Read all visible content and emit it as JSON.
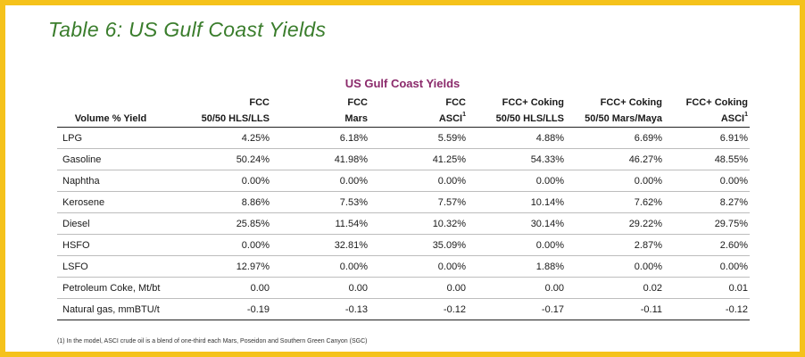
{
  "heading": "Table 6: US Gulf Coast Yields",
  "table_title": "US Gulf Coast Yields",
  "header_top": [
    "FCC",
    "FCC",
    "FCC",
    "FCC+ Coking",
    "FCC+ Coking",
    "FCC+ Coking"
  ],
  "header_bottom": {
    "label": "Volume % Yield",
    "cols": [
      {
        "text": "50/50 HLS/LLS",
        "sup": ""
      },
      {
        "text": "Mars",
        "sup": ""
      },
      {
        "text": "ASCI",
        "sup": "1"
      },
      {
        "text": "50/50 HLS/LLS",
        "sup": ""
      },
      {
        "text": "50/50 Mars/Maya",
        "sup": ""
      },
      {
        "text": "ASCI",
        "sup": "1"
      }
    ]
  },
  "rows": [
    {
      "label": "LPG",
      "values": [
        "4.25%",
        "6.18%",
        "5.59%",
        "4.88%",
        "6.69%",
        "6.91%"
      ]
    },
    {
      "label": "Gasoline",
      "values": [
        "50.24%",
        "41.98%",
        "41.25%",
        "54.33%",
        "46.27%",
        "48.55%"
      ]
    },
    {
      "label": "Naphtha",
      "values": [
        "0.00%",
        "0.00%",
        "0.00%",
        "0.00%",
        "0.00%",
        "0.00%"
      ]
    },
    {
      "label": "Kerosene",
      "values": [
        "8.86%",
        "7.53%",
        "7.57%",
        "10.14%",
        "7.62%",
        "8.27%"
      ]
    },
    {
      "label": "Diesel",
      "values": [
        "25.85%",
        "11.54%",
        "10.32%",
        "30.14%",
        "29.22%",
        "29.75%"
      ]
    },
    {
      "label": "HSFO",
      "values": [
        "0.00%",
        "32.81%",
        "35.09%",
        "0.00%",
        "2.87%",
        "2.60%"
      ]
    },
    {
      "label": "LSFO",
      "values": [
        "12.97%",
        "0.00%",
        "0.00%",
        "1.88%",
        "0.00%",
        "0.00%"
      ]
    },
    {
      "label": "Petroleum Coke, Mt/bt",
      "values": [
        "0.00",
        "0.00",
        "0.00",
        "0.00",
        "0.02",
        "0.01"
      ]
    },
    {
      "label": "Natural gas, mmBTU/t",
      "values": [
        "-0.19",
        "-0.13",
        "-0.12",
        "-0.17",
        "-0.11",
        "-0.12"
      ]
    }
  ],
  "footnote": "(1) In the model, ASCI crude oil is a blend of one-third each Mars, Poseidon and Southern Green Canyon (SGC)",
  "colors": {
    "frame": "#f5c21b",
    "heading": "#3a7d2c",
    "table_title": "#8b2a6b"
  }
}
